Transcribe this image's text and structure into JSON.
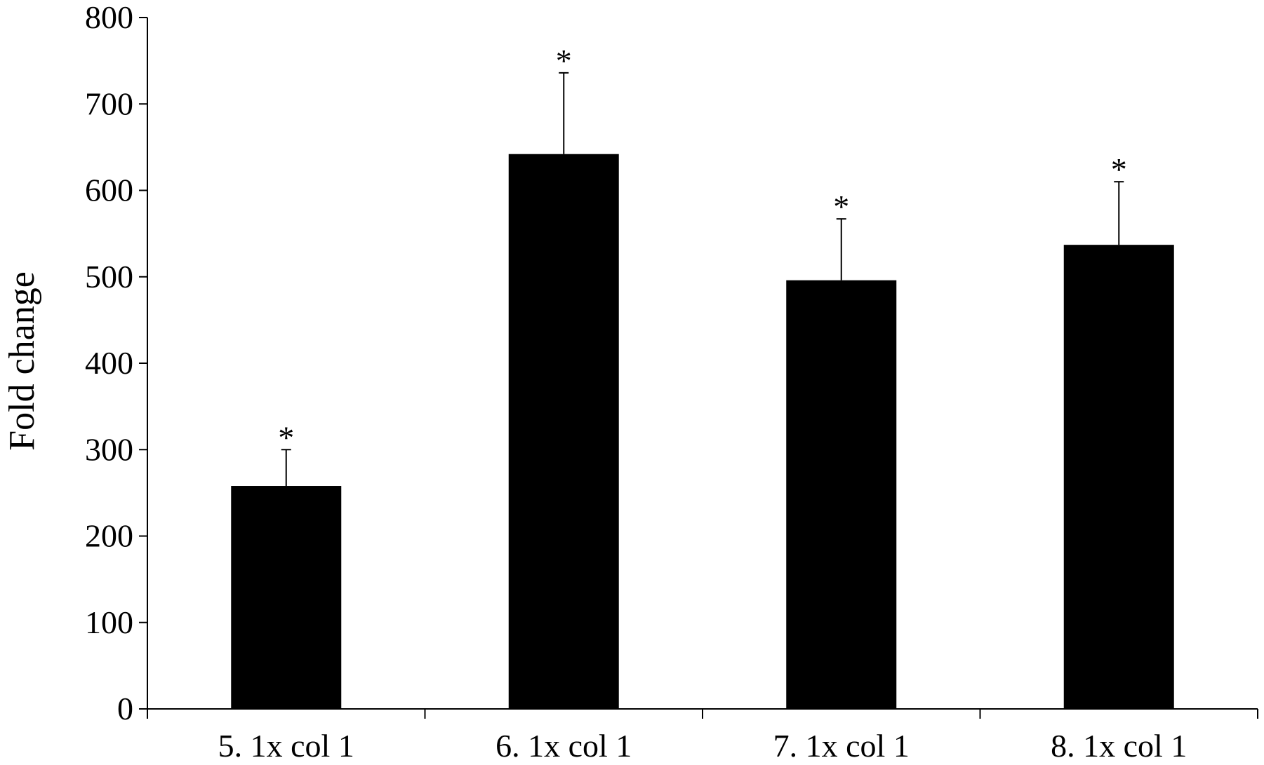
{
  "chart_data": {
    "type": "bar",
    "title": "",
    "xlabel": "",
    "ylabel": "Fold change",
    "categories": [
      "5. 1x col 1",
      "6. 1x col 1",
      "7. 1x col 1",
      "8. 1x col 1"
    ],
    "series": [
      {
        "values": [
          258,
          642,
          496,
          537
        ],
        "error_upper": [
          42,
          94,
          71,
          73
        ],
        "significance": [
          "*",
          "*",
          "*",
          "*"
        ],
        "color": "#000000"
      }
    ],
    "ylim": [
      0,
      800
    ],
    "yticks": [
      0,
      100,
      200,
      300,
      400,
      500,
      600,
      700,
      800
    ],
    "grid": false,
    "legend": "none"
  }
}
